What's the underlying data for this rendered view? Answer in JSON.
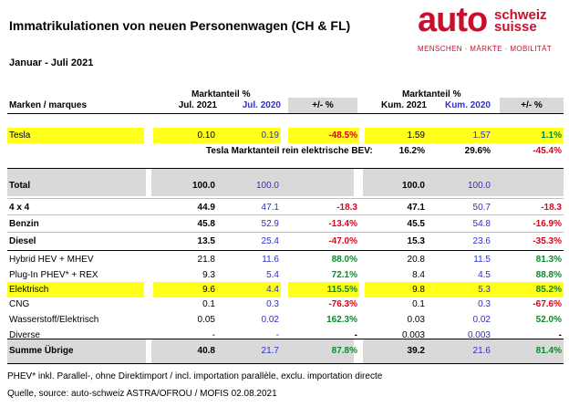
{
  "title": "Immatrikulationen von neuen Personenwagen (CH & FL)",
  "period": "Januar - Juli 2021",
  "logo": {
    "word": "auto",
    "line1": "schweiz",
    "line2": "suisse",
    "tagline": "MENSCHEN · MÄRKTE · MOBILITÄT"
  },
  "header": {
    "group_left": "Marktanteil %",
    "group_right": "Marktanteil %",
    "brand_col": "Marken / marques",
    "jul2021": "Jul. 2021",
    "jul2020": "Jul. 2020",
    "delta": "+/- %",
    "kum2021": "Kum. 2021",
    "kum2020": "Kum. 2020",
    "delta2": "+/- %"
  },
  "tesla": {
    "label": "Tesla",
    "jul2021": "0.10",
    "jul2020": "0.19",
    "delta": "-48.5%",
    "kum2021": "1.59",
    "kum2020": "1.57",
    "delta2": "1.1%"
  },
  "tesla_bev": {
    "label": "Tesla Marktanteil rein elektrische BEV:",
    "kum2021": "16.2%",
    "kum2020": "29.6%",
    "delta2": "-45.4%"
  },
  "rows": [
    {
      "label": "Total",
      "jul2021": "100.0",
      "jul2020": "100.0",
      "delta": "",
      "kum2021": "100.0",
      "kum2020": "100.0",
      "delta2": ""
    },
    {
      "label": "4 x 4",
      "jul2021": "44.9",
      "jul2020": "47.1",
      "delta": "-18.3",
      "kum2021": "47.1",
      "kum2020": "50.7",
      "delta2": "-18.3"
    },
    {
      "label": "Benzin",
      "jul2021": "45.8",
      "jul2020": "52.9",
      "delta": "-13.4%",
      "kum2021": "45.5",
      "kum2020": "54.8",
      "delta2": "-16.9%"
    },
    {
      "label": "Diesel",
      "jul2021": "13.5",
      "jul2020": "25.4",
      "delta": "-47.0%",
      "kum2021": "15.3",
      "kum2020": "23.6",
      "delta2": "-35.3%"
    },
    {
      "label": "Hybrid HEV + MHEV",
      "jul2021": "21.8",
      "jul2020": "11.6",
      "delta": "88.0%",
      "kum2021": "20.8",
      "kum2020": "11.5",
      "delta2": "81.3%"
    },
    {
      "label": "Plug-In PHEV* + REX",
      "jul2021": "9.3",
      "jul2020": "5.4",
      "delta": "72.1%",
      "kum2021": "8.4",
      "kum2020": "4.5",
      "delta2": "88.8%"
    },
    {
      "label": "Elektrisch",
      "jul2021": "9.6",
      "jul2020": "4.4",
      "delta": "115.5%",
      "kum2021": "9.8",
      "kum2020": "5.3",
      "delta2": "85.2%"
    },
    {
      "label": "CNG",
      "jul2021": "0.1",
      "jul2020": "0.3",
      "delta": "-76.3%",
      "kum2021": "0.1",
      "kum2020": "0.3",
      "delta2": "-67.6%"
    },
    {
      "label": "Wasserstoff/Elektrisch",
      "jul2021": "0.05",
      "jul2020": "0.02",
      "delta": "162.3%",
      "kum2021": "0.03",
      "kum2020": "0.02",
      "delta2": "52.0%"
    },
    {
      "label": "Diverse",
      "jul2021": "-",
      "jul2020": "-",
      "delta": "-",
      "kum2021": "0.003",
      "kum2020": "0.003",
      "delta2": "-"
    },
    {
      "label": "Summe Übrige",
      "jul2021": "40.8",
      "jul2020": "21.7",
      "delta": "87.8%",
      "kum2021": "39.2",
      "kum2020": "21.6",
      "delta2": "81.4%"
    }
  ],
  "footer": {
    "note": "PHEV* inkl. Parallel-, ohne Direktimport / incl. importation parallèle, exclu. importation directe",
    "source": "Quelle, source: auto-schweiz ASTRA/OFROU / MOFIS 02.08.2021"
  },
  "colors": {
    "highlight": "#ffff1a",
    "grey": "#d9d9d9",
    "brand_red": "#c8102e",
    "blue": "#2f2fd0",
    "negative": "#e0001b",
    "positive": "#0a8a2a"
  }
}
